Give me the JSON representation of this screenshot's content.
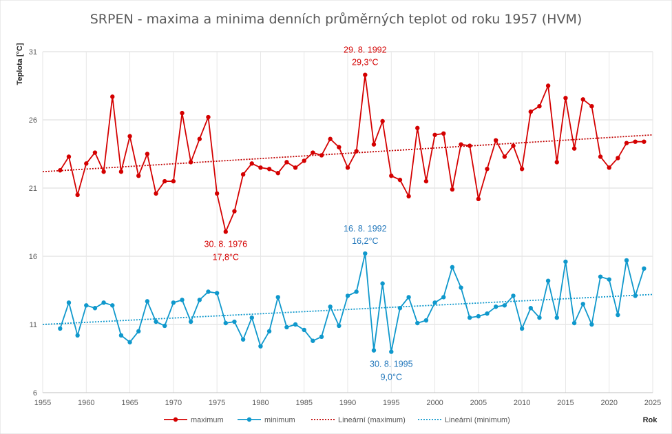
{
  "chart_data": {
    "type": "line",
    "title": "SRPEN - maxima a minima denních průměrných teplot od roku 1957 (HVM)",
    "ylabel": "Teplota [°C]",
    "xlabel": "Rok",
    "xlim": [
      1955,
      2025
    ],
    "ylim": [
      6,
      32
    ],
    "xticks": [
      1955,
      1960,
      1965,
      1970,
      1975,
      1980,
      1985,
      1990,
      1995,
      2000,
      2005,
      2010,
      2015,
      2020,
      2025
    ],
    "yticks": [
      6,
      11,
      16,
      21,
      26,
      31
    ],
    "grid": true,
    "legend_position": "bottom",
    "x": [
      1957,
      1958,
      1959,
      1960,
      1961,
      1962,
      1963,
      1964,
      1965,
      1966,
      1967,
      1968,
      1969,
      1970,
      1971,
      1972,
      1973,
      1974,
      1975,
      1976,
      1977,
      1978,
      1979,
      1980,
      1981,
      1982,
      1983,
      1984,
      1985,
      1986,
      1987,
      1988,
      1989,
      1990,
      1991,
      1992,
      1993,
      1994,
      1995,
      1996,
      1997,
      1998,
      1999,
      2000,
      2001,
      2002,
      2003,
      2004,
      2005,
      2006,
      2007,
      2008,
      2009,
      2010,
      2011,
      2012,
      2013,
      2014,
      2015,
      2016,
      2017,
      2018,
      2019,
      2020,
      2021,
      2022,
      2023,
      2024
    ],
    "series": [
      {
        "name": "maximum",
        "color": "#d40000",
        "values": [
          22.3,
          23.3,
          20.5,
          22.8,
          23.6,
          22.2,
          27.7,
          22.2,
          24.8,
          21.9,
          23.5,
          20.6,
          21.5,
          21.5,
          26.5,
          22.9,
          24.6,
          26.2,
          20.6,
          17.8,
          19.3,
          22.0,
          22.8,
          22.5,
          22.4,
          22.1,
          22.9,
          22.5,
          23.0,
          23.6,
          23.4,
          24.6,
          24.0,
          22.5,
          23.7,
          29.3,
          24.2,
          25.9,
          21.9,
          21.6,
          20.4,
          25.4,
          21.5,
          24.9,
          25.0,
          20.9,
          24.2,
          24.1,
          20.2,
          22.4,
          24.5,
          23.3,
          24.1,
          22.4,
          26.6,
          27.0,
          28.5,
          22.9,
          27.6,
          23.9,
          27.5,
          27.0,
          23.3,
          22.5,
          23.2,
          24.3,
          24.4,
          24.4
        ]
      },
      {
        "name": "minimum",
        "color": "#0f98cc",
        "values": [
          10.7,
          12.6,
          10.2,
          12.4,
          12.2,
          12.6,
          12.4,
          10.2,
          9.7,
          10.5,
          12.7,
          11.2,
          10.9,
          12.6,
          12.8,
          11.2,
          12.8,
          13.4,
          13.3,
          11.1,
          11.2,
          9.9,
          11.5,
          9.4,
          10.5,
          13.0,
          10.8,
          11.0,
          10.6,
          9.8,
          10.1,
          12.3,
          10.9,
          13.1,
          13.4,
          16.2,
          9.1,
          14.0,
          9.0,
          12.2,
          13.0,
          11.1,
          11.3,
          12.6,
          13.0,
          15.2,
          13.7,
          11.5,
          11.6,
          11.8,
          12.3,
          12.4,
          13.1,
          10.7,
          12.2,
          11.5,
          14.2,
          11.5,
          15.6,
          11.1,
          12.5,
          11.0,
          14.5,
          14.3,
          11.7,
          15.7,
          13.1,
          15.1
        ]
      },
      {
        "name": "Lineární (maximum)",
        "type": "trendline",
        "of": "maximum",
        "color": "#c00000",
        "x": [
          1955,
          2025
        ],
        "values": [
          22.2,
          24.9
        ]
      },
      {
        "name": "Lineární (minimum)",
        "type": "trendline",
        "of": "minimum",
        "color": "#0f98cc",
        "x": [
          1955,
          2025
        ],
        "values": [
          11.0,
          13.2
        ]
      }
    ],
    "annotations": [
      {
        "line1": "29. 8. 1992",
        "line2": "29,3°C",
        "color": "#d40000",
        "x": 1992,
        "y": 29.3,
        "placement": "above"
      },
      {
        "line1": "30. 8. 1976",
        "line2": "17,8°C",
        "color": "#d40000",
        "x": 1976,
        "y": 17.8,
        "placement": "below"
      },
      {
        "line1": "16. 8. 1992",
        "line2": "16,2°C",
        "color": "#2277bb",
        "x": 1992,
        "y": 16.2,
        "placement": "above"
      },
      {
        "line1": "30. 8. 1995",
        "line2": "9,0°C",
        "color": "#2277bb",
        "x": 1995,
        "y": 9.0,
        "placement": "below"
      }
    ]
  }
}
